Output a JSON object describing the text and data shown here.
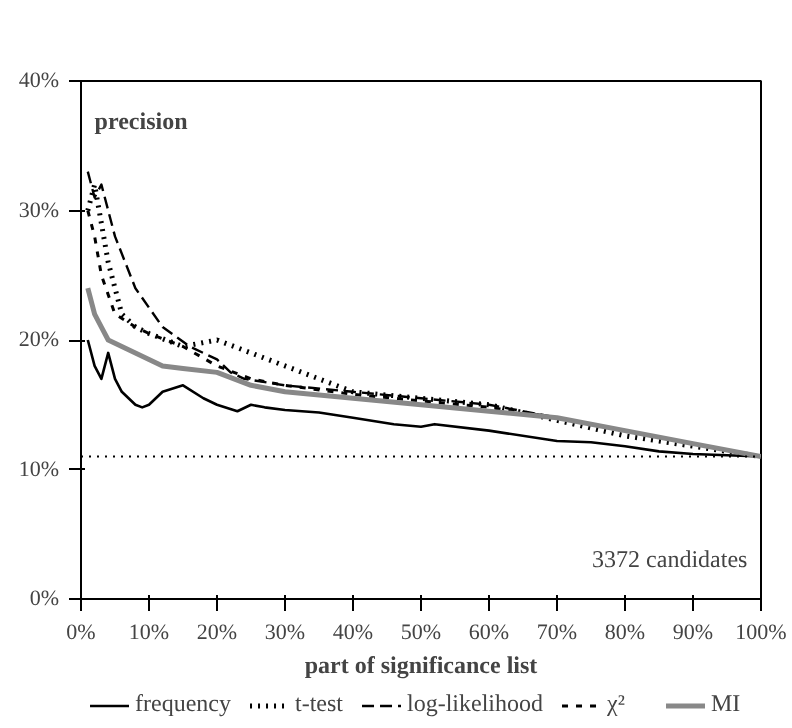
{
  "chart_data": {
    "type": "line",
    "title": "precision",
    "xlabel": "part of significance list",
    "xlim": [
      0,
      100
    ],
    "xticks": [
      {
        "value": 0,
        "label": "0%"
      },
      {
        "value": 10,
        "label": "10%"
      },
      {
        "value": 20,
        "label": "20%"
      },
      {
        "value": 30,
        "label": "30%"
      },
      {
        "value": 40,
        "label": "40%"
      },
      {
        "value": 50,
        "label": "50%"
      },
      {
        "value": 60,
        "label": "60%"
      },
      {
        "value": 70,
        "label": "70%"
      },
      {
        "value": 80,
        "label": "80%"
      },
      {
        "value": 90,
        "label": "90%"
      },
      {
        "value": 100,
        "label": "100%"
      }
    ],
    "ylim": [
      0,
      40
    ],
    "yticks": [
      {
        "value": 0,
        "label": "0%"
      },
      {
        "value": 10,
        "label": "10%"
      },
      {
        "value": 20,
        "label": "20%"
      },
      {
        "value": 30,
        "label": "30%"
      },
      {
        "value": 40,
        "label": "40%"
      }
    ],
    "grid": false,
    "legend": "bottom",
    "marker": "none",
    "series": [
      {
        "name": "frequency",
        "color": "#000000",
        "line_style": "solid",
        "x": [
          1,
          2,
          3,
          4,
          5,
          6,
          8,
          9,
          10,
          12,
          15,
          18,
          20,
          23,
          25,
          27,
          30,
          35,
          40,
          46,
          50,
          52,
          60,
          70,
          75,
          80,
          85,
          90,
          95,
          100
        ],
        "values": [
          20,
          18,
          17,
          19,
          17,
          16,
          15,
          14.8,
          15,
          16,
          16.5,
          15.5,
          15,
          14.5,
          15,
          14.8,
          14.6,
          14.4,
          14,
          13.5,
          13.3,
          13.5,
          13,
          12.2,
          12.1,
          11.8,
          11.4,
          11.2,
          11.1,
          11
        ]
      },
      {
        "name": "t-test",
        "color": "#000000",
        "line_style": "dotted",
        "x": [
          1,
          2,
          3,
          4,
          5,
          6,
          8,
          10,
          15,
          20,
          25,
          30,
          35,
          40,
          50,
          60,
          70,
          80,
          90,
          100
        ],
        "values": [
          30,
          32,
          29,
          26,
          24,
          22,
          21,
          20.5,
          19.5,
          20,
          19,
          18,
          17,
          16,
          15.5,
          15,
          13.8,
          12.6,
          11.8,
          11
        ]
      },
      {
        "name": "log-likelihood",
        "color": "#000000",
        "line_style": "dashed",
        "x": [
          1,
          2,
          3,
          5,
          8,
          12,
          16,
          20,
          22,
          24,
          30,
          40,
          50,
          60,
          70,
          80,
          90,
          100
        ],
        "values": [
          33,
          31,
          32,
          28,
          24,
          21,
          19.5,
          18.5,
          17.5,
          17,
          16.5,
          16,
          15.5,
          15,
          14,
          13,
          12,
          11
        ]
      },
      {
        "name": "χ²",
        "color": "#000000",
        "line_style": "dashed",
        "x": [
          1,
          2,
          3,
          5,
          8,
          10,
          15,
          20,
          25,
          30,
          40,
          50,
          60,
          70,
          80,
          90,
          100
        ],
        "values": [
          30,
          28,
          25,
          22,
          21,
          20.5,
          19.5,
          18,
          17,
          16.5,
          15.8,
          15.3,
          14.8,
          14,
          13,
          12,
          11
        ]
      },
      {
        "name": "MI",
        "color": "#888888",
        "line_style": "solid",
        "x": [
          1,
          2,
          3,
          4,
          6,
          8,
          10,
          12,
          15,
          20,
          25,
          30,
          40,
          50,
          60,
          70,
          80,
          90,
          100
        ],
        "values": [
          24,
          22,
          21,
          20,
          19.5,
          19,
          18.5,
          18,
          17.8,
          17.5,
          16.5,
          16,
          15.5,
          15,
          14.5,
          14,
          13,
          12,
          11
        ]
      }
    ],
    "ref_lines": [
      {
        "axis": "y",
        "value": 11,
        "line_style": "dotted",
        "color": "#000000"
      }
    ],
    "annotations": [
      "3372 candidates"
    ]
  }
}
